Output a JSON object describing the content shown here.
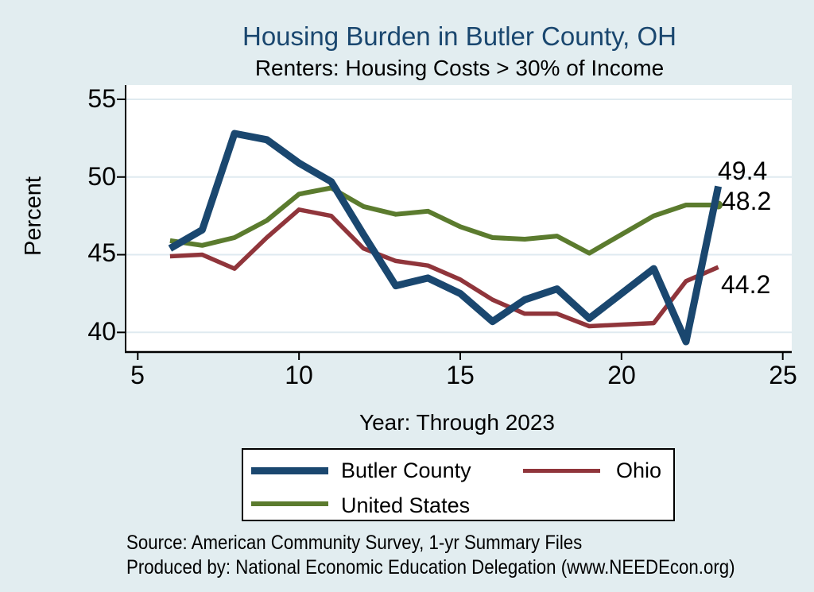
{
  "title": "Housing Burden in Butler County, OH",
  "subtitle": "Renters: Housing Costs > 30% of Income",
  "colors": {
    "background": "#e2edf0",
    "plot_background": "#ffffff",
    "gridline": "#dfeaf0",
    "axis": "#000000",
    "title_navy": "#1a476f",
    "butler_blue": "#1a476f",
    "ohio_maroon": "#90353b",
    "us_green": "#5b7b2e"
  },
  "chart_data": {
    "type": "line",
    "x": [
      6,
      7,
      8,
      9,
      10,
      11,
      12,
      13,
      14,
      15,
      16,
      17,
      18,
      19,
      20,
      21,
      22,
      23
    ],
    "series": [
      {
        "name": "United States",
        "color": "#5b7b2e",
        "width": 6,
        "end_dot": true,
        "values": [
          45.9,
          45.6,
          46.1,
          47.2,
          48.9,
          49.3,
          48.1,
          47.6,
          47.8,
          46.8,
          46.1,
          46.0,
          46.2,
          45.1,
          46.3,
          47.5,
          48.2,
          48.2
        ]
      },
      {
        "name": "Ohio",
        "color": "#90353b",
        "width": 5.5,
        "end_dot": false,
        "values": [
          44.9,
          45.0,
          44.1,
          46.1,
          47.9,
          47.5,
          45.4,
          44.6,
          44.3,
          43.4,
          42.1,
          41.2,
          41.2,
          40.4,
          40.5,
          40.6,
          43.3,
          44.2
        ]
      },
      {
        "name": "Butler County",
        "color": "#1a476f",
        "width": 9,
        "end_dot": false,
        "values": [
          45.4,
          46.6,
          52.8,
          52.4,
          50.9,
          49.7,
          46.3,
          43.0,
          43.5,
          42.5,
          40.7,
          42.1,
          42.8,
          40.9,
          42.5,
          44.1,
          39.4,
          49.4
        ]
      }
    ],
    "title": "Housing Burden in Butler County, OH",
    "subtitle": "Renters: Housing Costs > 30% of Income",
    "xlabel": "Year: Through 2023",
    "ylabel": "Percent",
    "xticks": [
      "5",
      "10",
      "15",
      "20",
      "25"
    ],
    "yticks": [
      "40",
      "45",
      "50",
      "55"
    ],
    "xlim": [
      5,
      25
    ],
    "ylim": [
      40,
      55
    ],
    "grid": true,
    "legend_position": "bottom",
    "end_labels": [
      {
        "text": "49.4",
        "series": "Butler County"
      },
      {
        "text": "48.2",
        "series": "United States"
      },
      {
        "text": "44.2",
        "series": "Ohio"
      }
    ]
  },
  "legend": {
    "row1": [
      "Butler County",
      "Ohio"
    ],
    "row2": [
      "United States"
    ]
  },
  "footer": {
    "line1": "Source: American Community Survey, 1-yr Summary Files",
    "line2": "Produced by: National Economic Education Delegation (www.NEEDEcon.org)"
  }
}
